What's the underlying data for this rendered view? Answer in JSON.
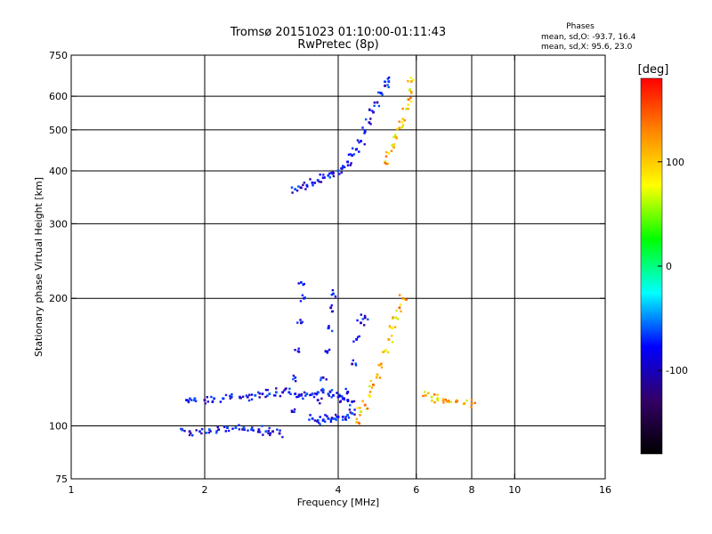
{
  "chart_data": {
    "type": "scatter",
    "title": "Tromsø 20151023 01:10:00-01:11:43",
    "subtitle": "RwPretec (8p)",
    "xlabel": "Frequency [MHz]",
    "ylabel": "Stationary phase Virtual Height [km]",
    "x_scale": "log2",
    "y_scale": "log",
    "xlim": [
      1,
      16
    ],
    "ylim": [
      75,
      750
    ],
    "x_ticks": [
      1,
      2,
      4,
      6,
      8,
      10,
      16
    ],
    "y_ticks": [
      75,
      100,
      200,
      300,
      400,
      500,
      600,
      750
    ],
    "x_grid": [
      2,
      4,
      6,
      8,
      10
    ],
    "y_grid": [
      100,
      200,
      300,
      400,
      500,
      600
    ],
    "grid": true,
    "stats": {
      "header": "Phases",
      "line1": "mean, sd,O: -93.7, 16.4",
      "line2": "mean, sd,X:  95.6, 23.0"
    },
    "colorbar": {
      "label": "[deg]",
      "range": [
        -180,
        180
      ],
      "ticks": [
        100,
        0,
        -100
      ],
      "colors": [
        "#ff0000",
        "#ff8800",
        "#ffff00",
        "#00ff00",
        "#00ffff",
        "#0000ff",
        "#330066",
        "#000000"
      ]
    },
    "o_mode_phase": -93.7,
    "x_mode_phase": 95.6,
    "traces": [
      {
        "mode": "o",
        "points": [
          [
            1.82,
            115
          ],
          [
            1.9,
            116
          ],
          [
            2.0,
            115
          ],
          [
            2.1,
            116
          ],
          [
            2.2,
            116
          ],
          [
            2.3,
            117
          ],
          [
            2.4,
            117
          ],
          [
            2.5,
            117
          ],
          [
            2.6,
            118
          ],
          [
            2.7,
            119
          ],
          [
            2.8,
            119
          ],
          [
            2.9,
            120
          ],
          [
            3.0,
            120
          ],
          [
            3.1,
            120
          ],
          [
            3.2,
            119
          ],
          [
            3.3,
            118
          ],
          [
            3.4,
            119
          ],
          [
            3.5,
            119
          ],
          [
            3.6,
            120
          ],
          [
            3.7,
            120
          ],
          [
            3.8,
            119
          ],
          [
            3.9,
            118
          ],
          [
            4.0,
            117
          ],
          [
            4.1,
            116
          ],
          [
            4.2,
            115
          ],
          [
            4.3,
            114
          ]
        ]
      },
      {
        "mode": "o",
        "points": [
          [
            1.78,
            98
          ],
          [
            1.85,
            97
          ],
          [
            1.95,
            97
          ],
          [
            2.05,
            98
          ],
          [
            2.15,
            98
          ],
          [
            2.25,
            99
          ],
          [
            2.35,
            99
          ],
          [
            2.45,
            99
          ],
          [
            2.55,
            98
          ],
          [
            2.65,
            98
          ],
          [
            2.75,
            97
          ],
          [
            2.85,
            97
          ],
          [
            2.95,
            96
          ]
        ]
      },
      {
        "mode": "o",
        "points": [
          [
            3.5,
            104
          ],
          [
            3.6,
            103
          ],
          [
            3.7,
            103
          ],
          [
            3.8,
            104
          ],
          [
            3.9,
            104
          ],
          [
            4.0,
            105
          ],
          [
            4.1,
            105
          ],
          [
            4.2,
            106
          ],
          [
            4.3,
            107
          ]
        ]
      },
      {
        "mode": "o",
        "points": [
          [
            3.15,
            108
          ],
          [
            3.2,
            130
          ],
          [
            3.25,
            150
          ],
          [
            3.3,
            175
          ],
          [
            3.35,
            200
          ],
          [
            3.3,
            218
          ],
          [
            3.6,
            115
          ],
          [
            3.7,
            130
          ],
          [
            3.75,
            150
          ],
          [
            3.8,
            170
          ],
          [
            3.85,
            190
          ],
          [
            3.9,
            205
          ],
          [
            4.2,
            120
          ],
          [
            4.3,
            140
          ],
          [
            4.4,
            160
          ],
          [
            4.5,
            175
          ],
          [
            4.6,
            180
          ]
        ]
      },
      {
        "mode": "o",
        "points": [
          [
            3.2,
            362
          ],
          [
            3.3,
            365
          ],
          [
            3.4,
            370
          ],
          [
            3.5,
            375
          ],
          [
            3.6,
            380
          ],
          [
            3.7,
            385
          ],
          [
            3.8,
            390
          ],
          [
            3.9,
            395
          ],
          [
            4.0,
            400
          ],
          [
            4.1,
            410
          ],
          [
            4.2,
            420
          ],
          [
            4.3,
            435
          ],
          [
            4.4,
            450
          ],
          [
            4.5,
            470
          ],
          [
            4.6,
            495
          ],
          [
            4.7,
            520
          ],
          [
            4.8,
            550
          ],
          [
            4.9,
            580
          ],
          [
            5.0,
            610
          ],
          [
            5.1,
            635
          ],
          [
            5.2,
            650
          ]
        ]
      },
      {
        "mode": "x",
        "points": [
          [
            4.4,
            102
          ],
          [
            4.5,
            108
          ],
          [
            4.6,
            112
          ],
          [
            4.7,
            118
          ],
          [
            4.8,
            125
          ],
          [
            4.9,
            132
          ],
          [
            5.0,
            140
          ],
          [
            5.1,
            150
          ],
          [
            5.2,
            160
          ],
          [
            5.3,
            170
          ],
          [
            5.4,
            180
          ],
          [
            5.5,
            190
          ],
          [
            5.6,
            200
          ]
        ]
      },
      {
        "mode": "x",
        "points": [
          [
            5.1,
            420
          ],
          [
            5.2,
            440
          ],
          [
            5.3,
            460
          ],
          [
            5.4,
            480
          ],
          [
            5.5,
            505
          ],
          [
            5.6,
            530
          ],
          [
            5.7,
            560
          ],
          [
            5.75,
            590
          ],
          [
            5.8,
            620
          ],
          [
            5.85,
            650
          ]
        ]
      },
      {
        "mode": "x",
        "points": [
          [
            6.3,
            118
          ],
          [
            6.5,
            117
          ],
          [
            6.7,
            116
          ],
          [
            6.9,
            115
          ],
          [
            7.1,
            114
          ],
          [
            7.4,
            114
          ],
          [
            7.7,
            113
          ],
          [
            8.0,
            113
          ]
        ]
      }
    ]
  }
}
